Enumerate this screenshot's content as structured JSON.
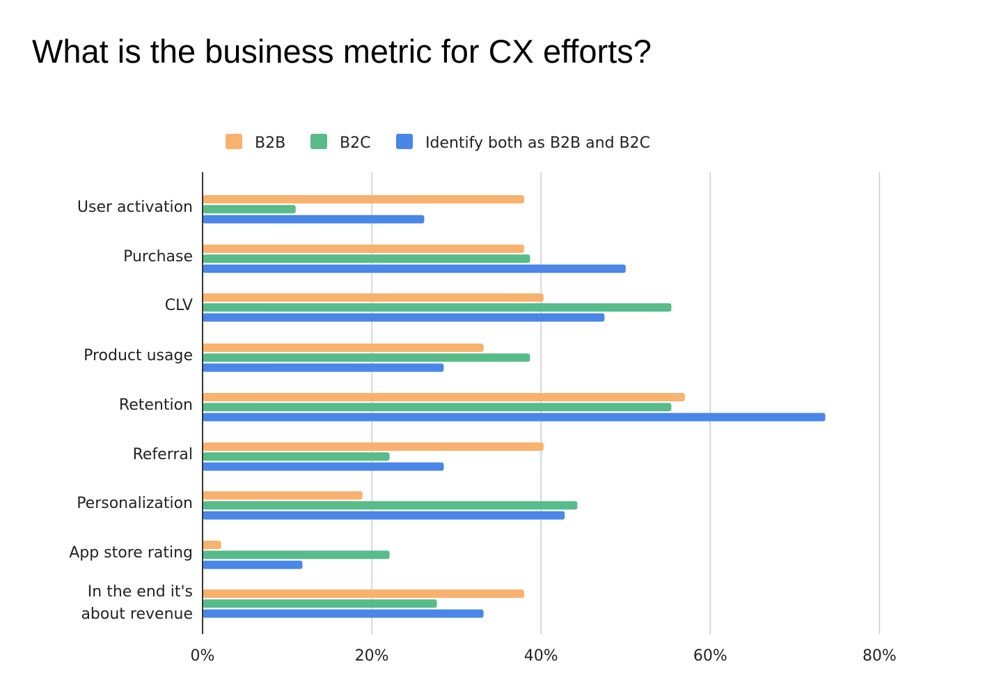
{
  "chart_data": {
    "type": "bar",
    "orientation": "horizontal",
    "title": "What is the business metric for CX efforts?",
    "categories": [
      "User activation",
      "Purchase",
      "CLV",
      "Product usage",
      "Retention",
      "Referral",
      "Personalization",
      "App store rating",
      "In the end it's about revenue"
    ],
    "series": [
      {
        "name": "B2B",
        "color": "#F9B16E",
        "values": [
          38,
          38,
          40.3,
          33.2,
          57,
          40.3,
          18.9,
          2.2,
          38
        ]
      },
      {
        "name": "B2C",
        "color": "#57BB8A",
        "values": [
          11,
          38.7,
          55.4,
          38.7,
          55.4,
          22.1,
          44.3,
          22.1,
          27.7
        ]
      },
      {
        "name": "Identify both as B2B and B2C",
        "color": "#4A86E8",
        "values": [
          26.2,
          50,
          47.5,
          28.5,
          73.6,
          28.5,
          42.8,
          11.8,
          33.2
        ]
      }
    ],
    "xlim": [
      0,
      90
    ],
    "xticks": [
      "0%",
      "20%",
      "40%",
      "60%",
      "80%"
    ],
    "xtick_values": [
      0,
      20,
      40,
      60,
      80
    ],
    "grid": true,
    "legend": "top"
  }
}
